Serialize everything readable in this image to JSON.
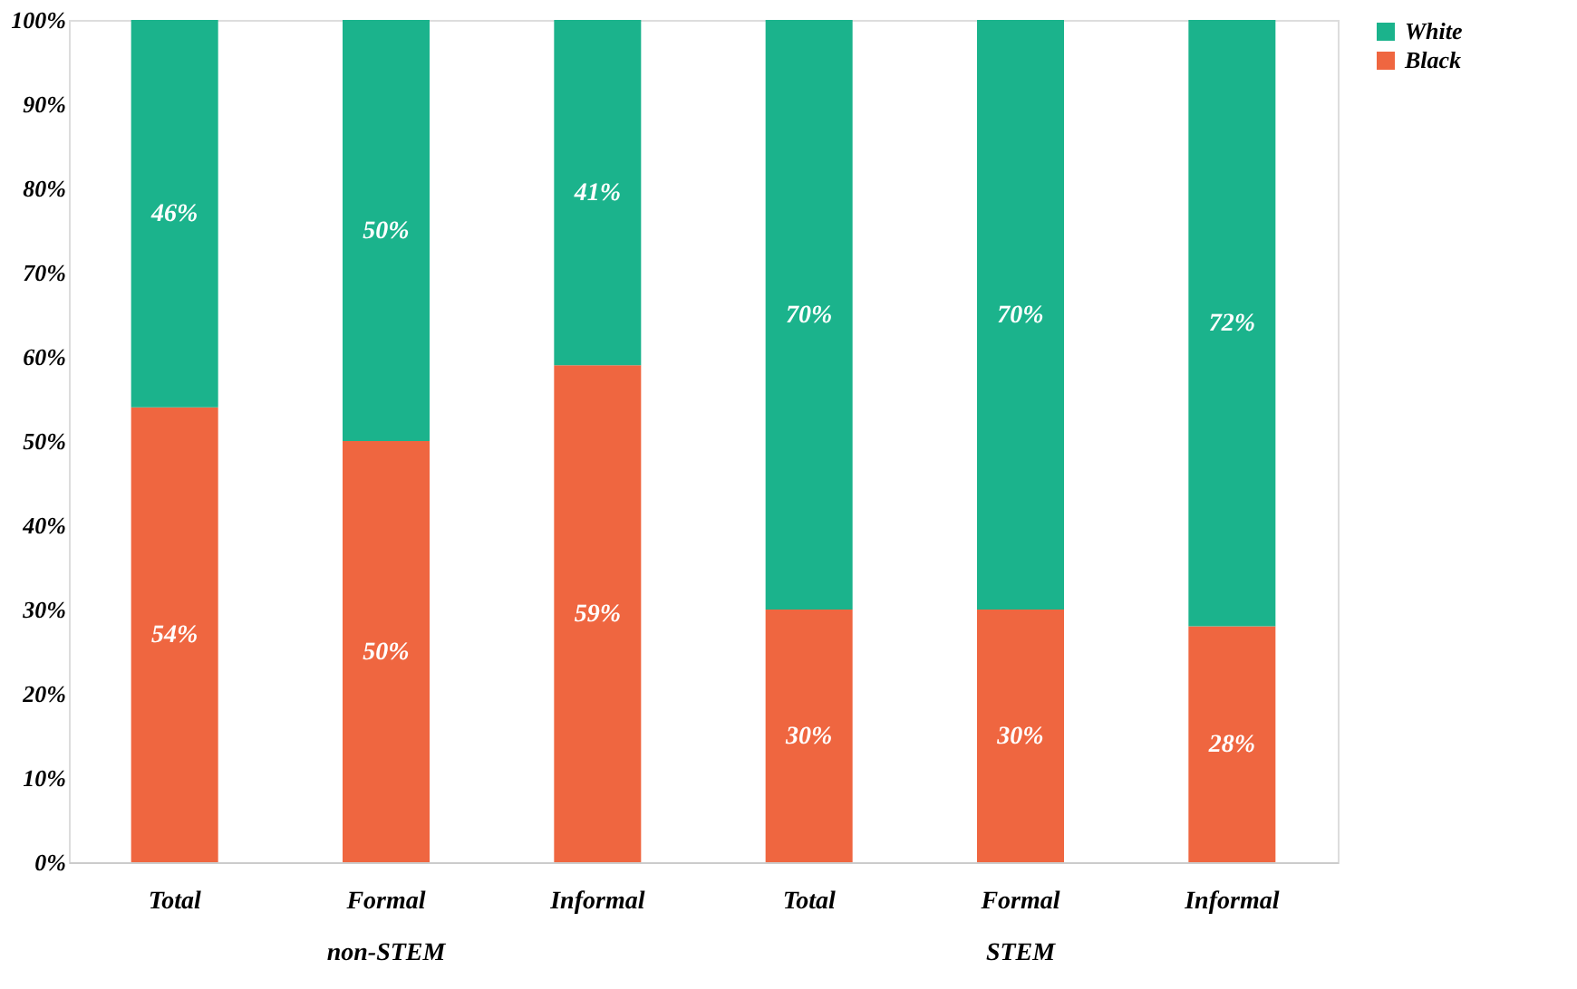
{
  "chart_data": {
    "type": "bar",
    "stacked": true,
    "categories": [
      "Total",
      "Formal",
      "Informal",
      "Total",
      "Formal",
      "Informal"
    ],
    "series": [
      {
        "name": "Black",
        "color": "#ef6640",
        "values": [
          54,
          50,
          59,
          30,
          30,
          28
        ],
        "value_labels": [
          "54%",
          "50%",
          "59%",
          "30%",
          "30%",
          "28%"
        ]
      },
      {
        "name": "White",
        "color": "#1bb38c",
        "values": [
          46,
          50,
          41,
          70,
          70,
          72
        ],
        "value_labels": [
          "46%",
          "50%",
          "41%",
          "70%",
          "70%",
          "72%"
        ]
      }
    ],
    "ylim": [
      0,
      100
    ],
    "yticks": [
      {
        "value": 0,
        "label": "0%"
      },
      {
        "value": 10,
        "label": "10%"
      },
      {
        "value": 20,
        "label": "20%"
      },
      {
        "value": 30,
        "label": "30%"
      },
      {
        "value": 40,
        "label": "40%"
      },
      {
        "value": 50,
        "label": "50%"
      },
      {
        "value": 60,
        "label": "60%"
      },
      {
        "value": 70,
        "label": "70%"
      },
      {
        "value": 80,
        "label": "80%"
      },
      {
        "value": 90,
        "label": "90%"
      },
      {
        "value": 100,
        "label": "100%"
      }
    ],
    "annotations": [
      "non-STEM",
      "STEM"
    ],
    "legend": "right",
    "grid": false
  }
}
